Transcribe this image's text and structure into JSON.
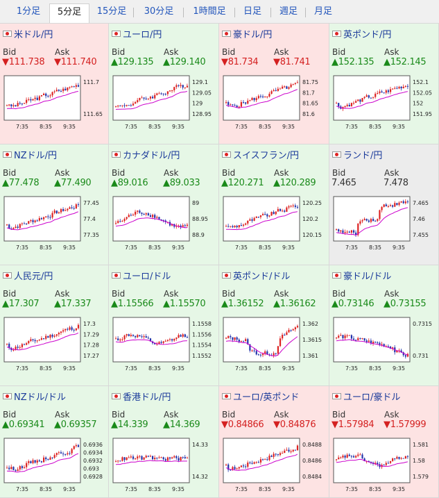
{
  "tabs": [
    {
      "label": "1分足",
      "active": false
    },
    {
      "label": "5分足",
      "active": true
    },
    {
      "label": "15分足",
      "active": false
    },
    {
      "label": "30分足",
      "active": false
    },
    {
      "label": "1時間足",
      "active": false
    },
    {
      "label": "日足",
      "active": false
    },
    {
      "label": "週足",
      "active": false
    },
    {
      "label": "月足",
      "active": false
    }
  ],
  "bid_label": "Bid",
  "ask_label": "Ask",
  "x_ticks": [
    "7:35",
    "8:35",
    "9:35"
  ],
  "colors": {
    "up": "#1a8a1a",
    "down": "#d42020",
    "up_bg": "#e6f7e6",
    "down_bg": "#fde3e3",
    "candle_up": "#dd2222",
    "candle_down": "#2233aa",
    "ma": "#cc00cc"
  },
  "cells": [
    {
      "name": "米ドル/円",
      "dir": "down",
      "bid": "▼111.738",
      "ask": "▼111.740",
      "flag": "us-flag-icon",
      "y_ticks": [
        "111.7",
        "111.65"
      ],
      "trend": "up"
    },
    {
      "name": "ユーロ/円",
      "dir": "up",
      "bid": "▲129.135",
      "ask": "▲129.140",
      "flag": "eu-flag-icon",
      "y_ticks": [
        "129.1",
        "129.05",
        "129",
        "128.95"
      ],
      "trend": "up"
    },
    {
      "name": "豪ドル/円",
      "dir": "down",
      "bid": "▼81.734",
      "ask": "▼81.741",
      "flag": "au-flag-icon",
      "y_ticks": [
        "81.75",
        "81.7",
        "81.65",
        "81.6"
      ],
      "trend": "up"
    },
    {
      "name": "英ポンド/円",
      "dir": "up",
      "bid": "▲152.135",
      "ask": "▲152.145",
      "flag": "gb-flag-icon",
      "y_ticks": [
        "152.1",
        "152.05",
        "152",
        "151.95"
      ],
      "trend": "up"
    },
    {
      "name": "NZドル/円",
      "dir": "up",
      "bid": "▲77.478",
      "ask": "▲77.490",
      "flag": "nz-flag-icon",
      "y_ticks": [
        "77.45",
        "77.4",
        "77.35"
      ],
      "trend": "up"
    },
    {
      "name": "カナダドル/円",
      "dir": "up",
      "bid": "▲89.016",
      "ask": "▲89.033",
      "flag": "ca-flag-icon",
      "y_ticks": [
        "89",
        "88.95",
        "88.9"
      ],
      "trend": "vol"
    },
    {
      "name": "スイスフラン/円",
      "dir": "up",
      "bid": "▲120.271",
      "ask": "▲120.289",
      "flag": "ch-flag-icon",
      "y_ticks": [
        "120.25",
        "120.2",
        "120.15"
      ],
      "trend": "up"
    },
    {
      "name": "ランド/円",
      "dir": "flat",
      "bid": "7.465",
      "ask": "7.478",
      "flag": "za-flag-icon",
      "y_ticks": [
        "7.465",
        "7.46",
        "7.455"
      ],
      "trend": "step"
    },
    {
      "name": "人民元/円",
      "dir": "up",
      "bid": "▲17.307",
      "ask": "▲17.337",
      "flag": "cn-flag-icon",
      "y_ticks": [
        "17.3",
        "17.29",
        "17.28",
        "17.27"
      ],
      "trend": "up"
    },
    {
      "name": "ユーロ/ドル",
      "dir": "up",
      "bid": "▲1.15566",
      "ask": "▲1.15570",
      "flag": "eu-flag-icon",
      "y_ticks": [
        "1.1558",
        "1.1556",
        "1.1554",
        "1.1552"
      ],
      "trend": "flat"
    },
    {
      "name": "英ポンド/ドル",
      "dir": "up",
      "bid": "▲1.36152",
      "ask": "▲1.36162",
      "flag": "gb-flag-icon",
      "y_ticks": [
        "1.362",
        "1.3615",
        "1.361"
      ],
      "trend": "dip"
    },
    {
      "name": "豪ドル/ドル",
      "dir": "up",
      "bid": "▲0.73146",
      "ask": "▲0.73155",
      "flag": "au-flag-icon",
      "y_ticks": [
        "0.7315",
        "0.731"
      ],
      "trend": "down"
    },
    {
      "name": "NZドル/ドル",
      "dir": "up",
      "bid": "▲0.69341",
      "ask": "▲0.69357",
      "flag": "nz-flag-icon",
      "y_ticks": [
        "0.6936",
        "0.6934",
        "0.6932",
        "0.693",
        "0.6928"
      ],
      "trend": "up"
    },
    {
      "name": "香港ドル/円",
      "dir": "up",
      "bid": "▲14.339",
      "ask": "▲14.369",
      "flag": "hk-flag-icon",
      "y_ticks": [
        "14.33",
        "14.32"
      ],
      "trend": "bars"
    },
    {
      "name": "ユーロ/英ポンド",
      "dir": "down",
      "bid": "▼0.84866",
      "ask": "▼0.84876",
      "flag": "eu-flag-icon",
      "y_ticks": [
        "0.8488",
        "0.8486",
        "0.8484"
      ],
      "trend": "up"
    },
    {
      "name": "ユーロ/豪ドル",
      "dir": "down",
      "bid": "▼1.57984",
      "ask": "▼1.57999",
      "flag": "eu-flag-icon",
      "y_ticks": [
        "1.581",
        "1.58",
        "1.579"
      ],
      "trend": "flat"
    }
  ]
}
